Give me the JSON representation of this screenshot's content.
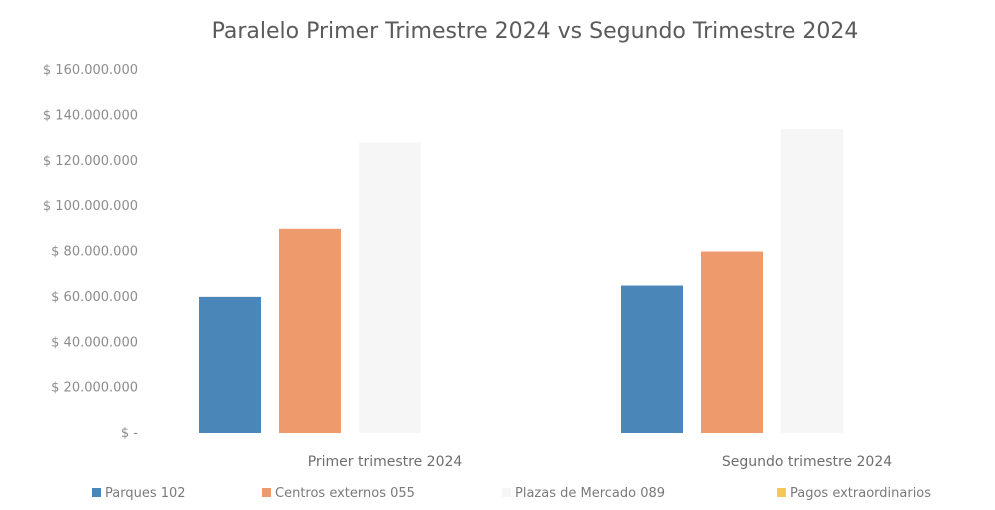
{
  "chart_data": {
    "type": "bar",
    "title": "Paralelo Primer Trimestre 2024 vs Segundo Trimestre 2024",
    "categories": [
      "Primer trimestre 2024",
      "Segundo trimestre 2024"
    ],
    "series": [
      {
        "name": "Parques 102",
        "values": [
          60000000,
          65000000
        ],
        "color": "#4a86b8"
      },
      {
        "name": "Centros externos 055",
        "values": [
          90000000,
          80000000
        ],
        "color": "#ee9a6c"
      },
      {
        "name": "Plazas de Mercado 089",
        "values": [
          128000000,
          134000000
        ],
        "color": "#f6f6f6"
      },
      {
        "name": "Pagos extraordinarios",
        "values": [
          0,
          0
        ],
        "color": "#f5c75a"
      }
    ],
    "ylim": [
      0,
      160000000
    ],
    "yticks": [
      0,
      20000000,
      40000000,
      60000000,
      80000000,
      100000000,
      120000000,
      140000000,
      160000000
    ],
    "ytick_labels": [
      "$ -",
      "$ 20.000.000",
      "$ 40.000.000",
      "$ 60.000.000",
      "$ 80.000.000",
      "$ 100.000.000",
      "$ 120.000.000",
      "$ 140.000.000",
      "$ 160.000.000"
    ],
    "grid": false,
    "legend_position": "bottom"
  }
}
